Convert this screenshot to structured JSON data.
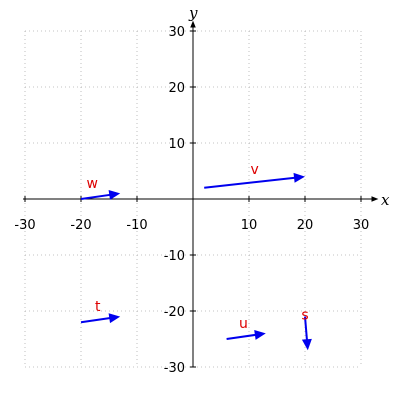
{
  "chart_data": {
    "type": "vector-field",
    "xlabel": "x",
    "ylabel": "y",
    "xlim": [
      -30,
      30
    ],
    "ylim": [
      -30,
      30
    ],
    "grid": true,
    "x_ticks": [
      -30,
      -20,
      -10,
      10,
      20,
      30
    ],
    "y_ticks": [
      -30,
      -20,
      -10,
      10,
      20,
      30
    ],
    "vector_color": "#0000ee",
    "label_color": "#dd0000",
    "vectors": [
      {
        "label": "v",
        "x0": 2,
        "y0": 2,
        "x1": 20,
        "y1": 4,
        "label_x": 11,
        "label_y": 4.5
      },
      {
        "label": "w",
        "x0": -20,
        "y0": 0,
        "x1": -13,
        "y1": 1,
        "label_x": -18,
        "label_y": 2
      },
      {
        "label": "t",
        "x0": -20,
        "y0": -22,
        "x1": -13,
        "y1": -21,
        "label_x": -17,
        "label_y": -20
      },
      {
        "label": "u",
        "x0": 6,
        "y0": -25,
        "x1": 13,
        "y1": -24,
        "label_x": 9,
        "label_y": -23
      },
      {
        "label": "s",
        "x0": 20,
        "y0": -21,
        "x1": 20.5,
        "y1": -27,
        "label_x": 20,
        "label_y": -21.5
      }
    ]
  }
}
